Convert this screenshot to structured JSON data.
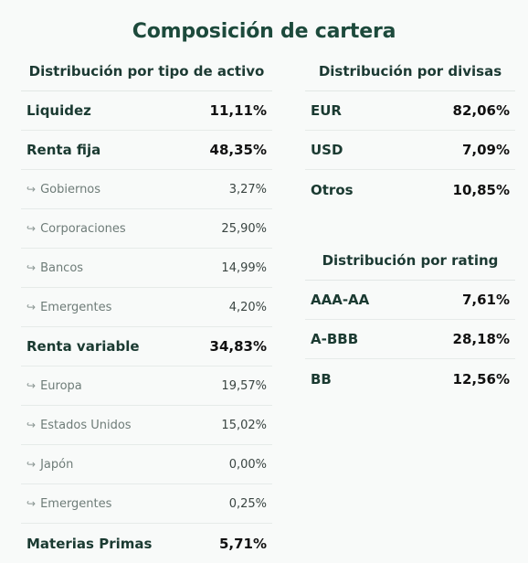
{
  "title": "Composición de cartera",
  "asset_type": {
    "heading": "Distribución por tipo de activo",
    "rows": [
      {
        "label": "Liquidez",
        "value": "11,11%",
        "sub": false
      },
      {
        "label": "Renta fija",
        "value": "48,35%",
        "sub": false
      },
      {
        "label": "Gobiernos",
        "value": "3,27%",
        "sub": true
      },
      {
        "label": "Corporaciones",
        "value": "25,90%",
        "sub": true
      },
      {
        "label": "Bancos",
        "value": "14,99%",
        "sub": true
      },
      {
        "label": "Emergentes",
        "value": "4,20%",
        "sub": true
      },
      {
        "label": "Renta variable",
        "value": "34,83%",
        "sub": false
      },
      {
        "label": "Europa",
        "value": "19,57%",
        "sub": true
      },
      {
        "label": "Estados Unidos",
        "value": "15,02%",
        "sub": true
      },
      {
        "label": "Japón",
        "value": "0,00%",
        "sub": true
      },
      {
        "label": "Emergentes",
        "value": "0,25%",
        "sub": true
      },
      {
        "label": "Materias Primas",
        "value": "5,71%",
        "sub": false
      }
    ]
  },
  "currency": {
    "heading": "Distribución por divisas",
    "rows": [
      {
        "label": "EUR",
        "value": "82,06%"
      },
      {
        "label": "USD",
        "value": "7,09%"
      },
      {
        "label": "Otros",
        "value": "10,85%"
      }
    ]
  },
  "rating": {
    "heading": "Distribución por rating",
    "rows": [
      {
        "label": "AAA-AA",
        "value": "7,61%"
      },
      {
        "label": "A-BBB",
        "value": "28,18%"
      },
      {
        "label": "BB",
        "value": "12,56%"
      }
    ]
  },
  "sub_arrow": "↪"
}
